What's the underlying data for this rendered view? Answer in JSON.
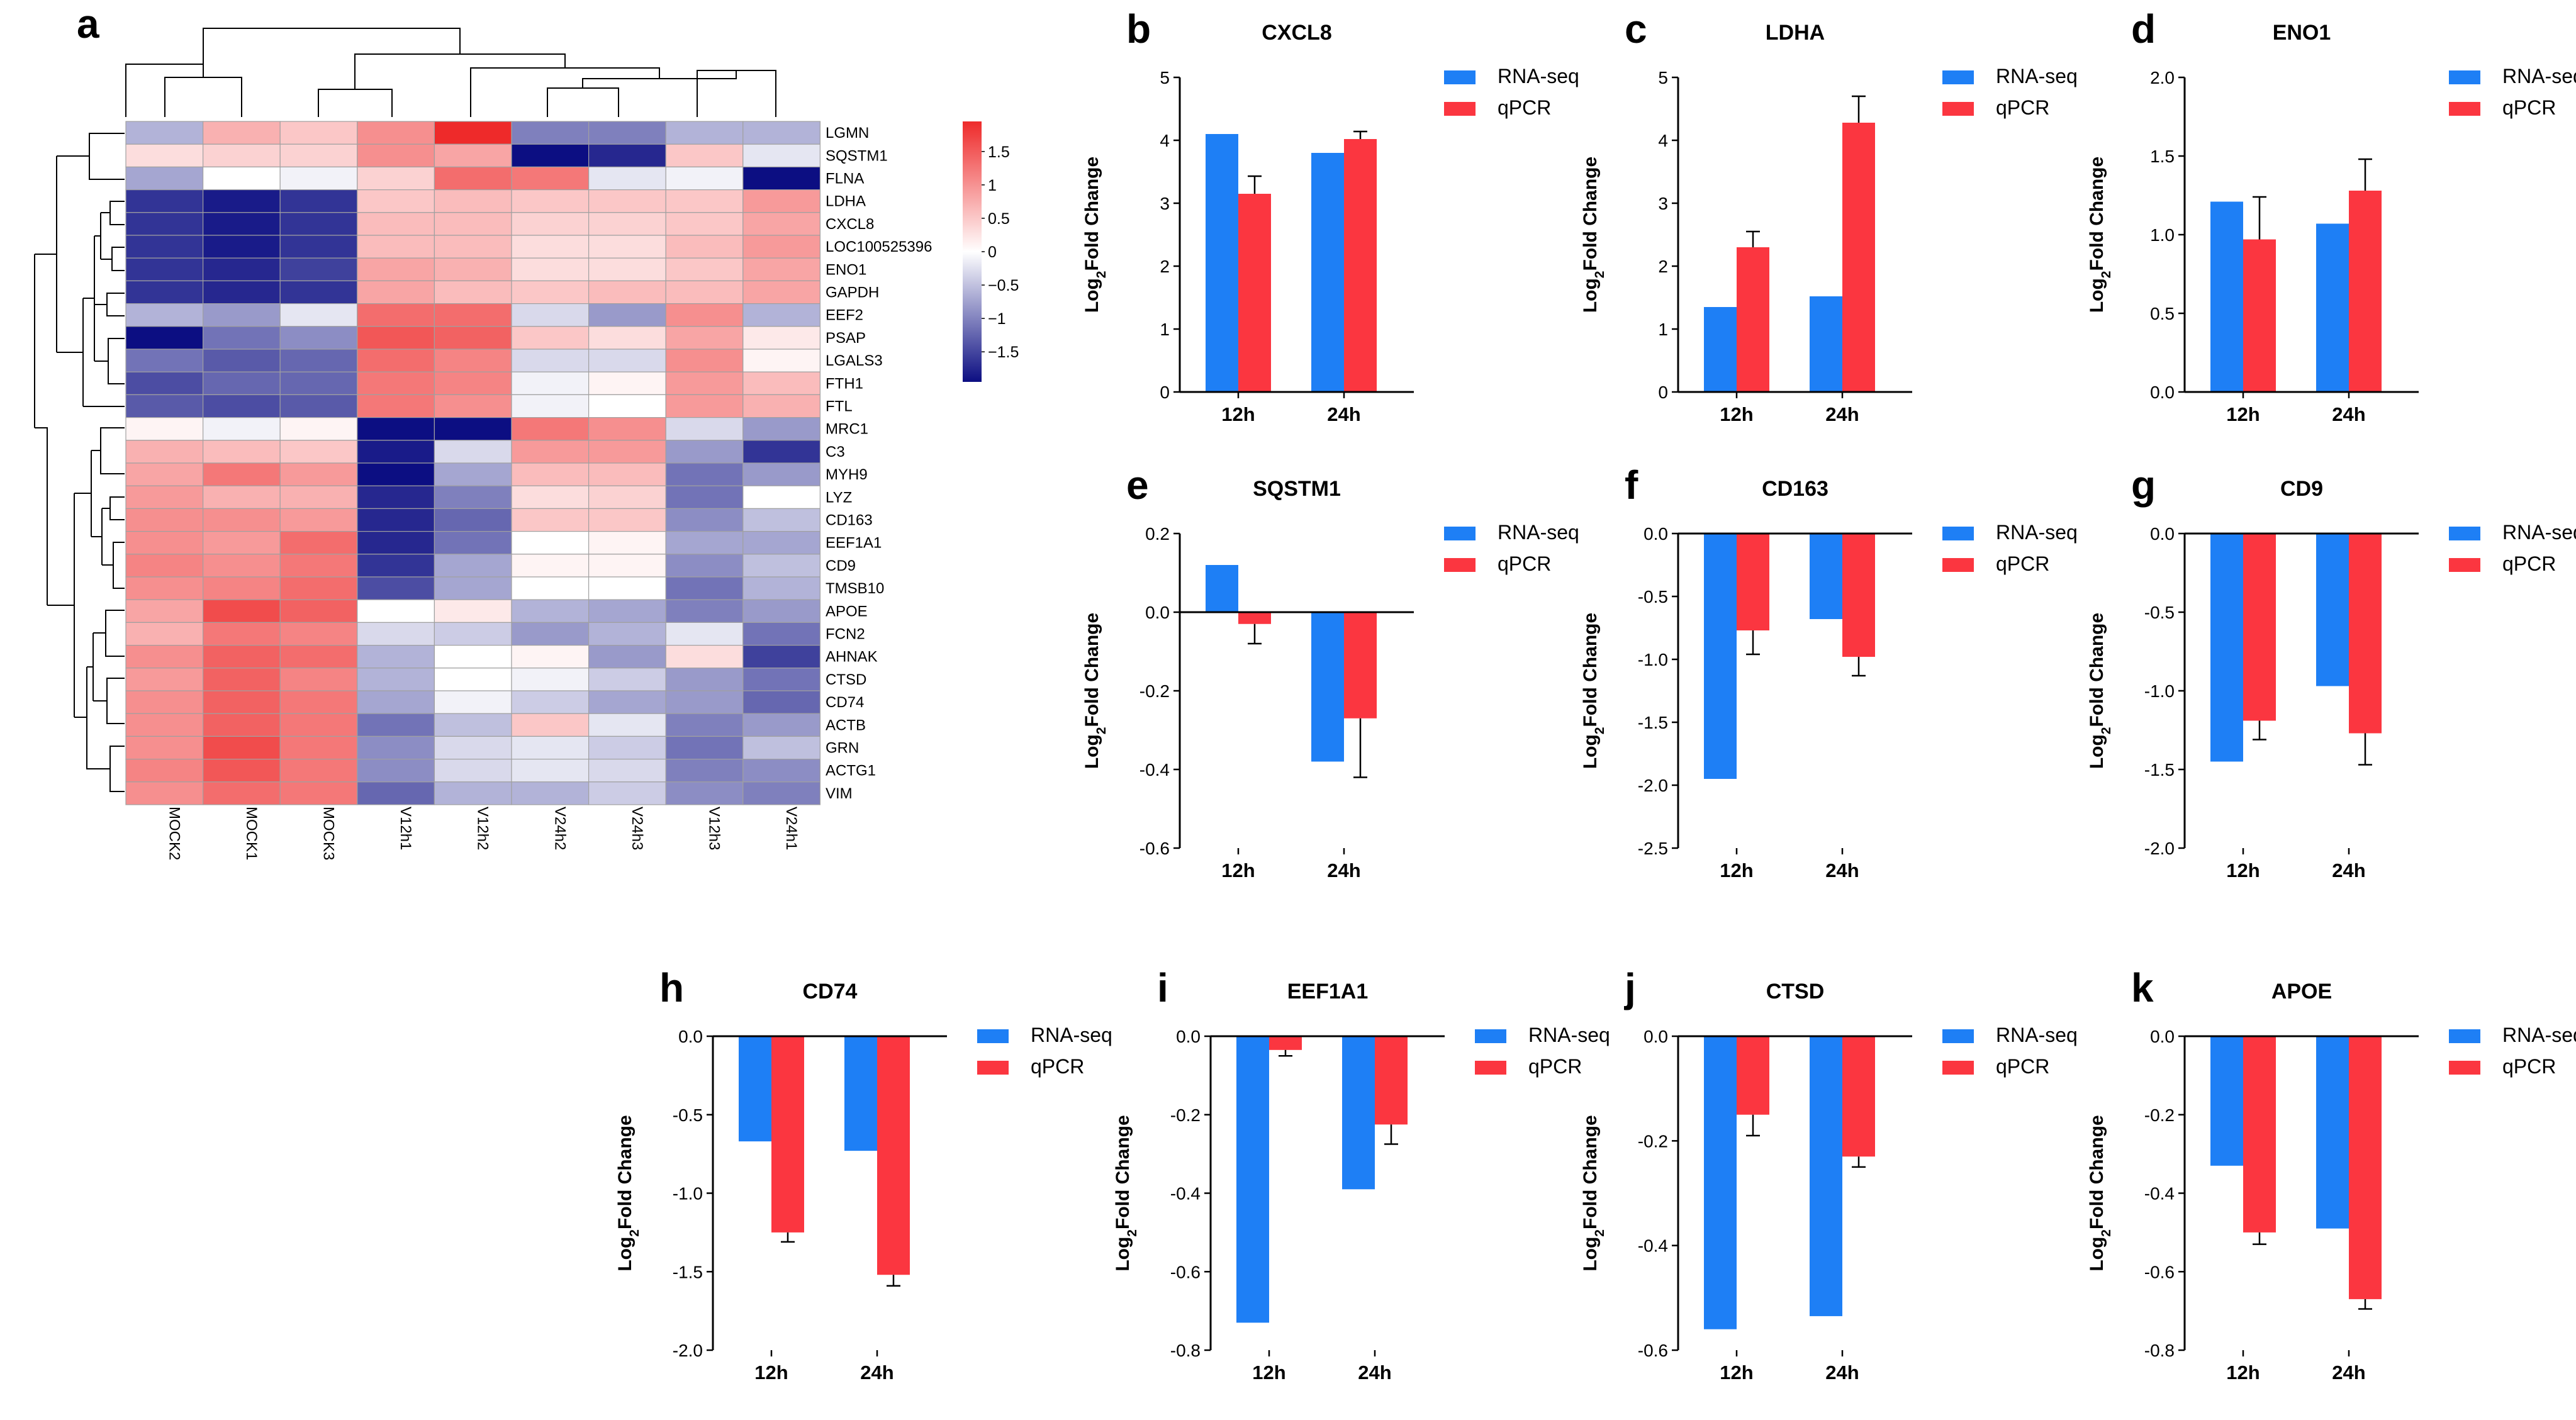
{
  "colors": {
    "rna": "#1e7ff5",
    "qpcr": "#fb3640",
    "heat_low": "#0c0e82",
    "heat_mid": "#ffffff",
    "heat_high": "#ee2a2a",
    "grid": "#a0a0a0"
  },
  "heatmap": {
    "letter": "a",
    "genes": [
      "LGMN",
      "SQSTM1",
      "FLNA",
      "LDHA",
      "CXCL8",
      "LOC100525396",
      "ENO1",
      "GAPDH",
      "EEF2",
      "PSAP",
      "LGALS3",
      "FTH1",
      "FTL",
      "MRC1",
      "C3",
      "MYH9",
      "LYZ",
      "CD163",
      "EEF1A1",
      "CD9",
      "TMSB10",
      "APOE",
      "FCN2",
      "AHNAK",
      "CTSD",
      "CD74",
      "ACTB",
      "GRN",
      "ACTG1",
      "VIM"
    ],
    "samples": [
      "MOCK2",
      "MOCK1",
      "MOCK3",
      "V12h1",
      "V12h2",
      "V24h2",
      "V24h3",
      "V12h3",
      "V24h1"
    ],
    "values": [
      [
        -0.6,
        0.7,
        0.5,
        1.0,
        1.9,
        -1.0,
        -1.0,
        -0.6,
        -0.6
      ],
      [
        0.3,
        0.4,
        0.4,
        1.0,
        0.8,
        -1.9,
        -1.7,
        0.5,
        -0.2
      ],
      [
        -0.7,
        0.0,
        -0.1,
        0.4,
        1.3,
        1.2,
        -0.2,
        -0.1,
        -1.9
      ],
      [
        -1.6,
        -1.8,
        -1.6,
        0.5,
        0.6,
        0.5,
        0.5,
        0.5,
        0.9
      ],
      [
        -1.6,
        -1.8,
        -1.6,
        0.6,
        0.6,
        0.4,
        0.4,
        0.5,
        0.8
      ],
      [
        -1.6,
        -1.8,
        -1.6,
        0.6,
        0.6,
        0.3,
        0.3,
        0.6,
        0.9
      ],
      [
        -1.6,
        -1.7,
        -1.5,
        0.8,
        0.7,
        0.3,
        0.3,
        0.5,
        0.8
      ],
      [
        -1.6,
        -1.7,
        -1.6,
        0.8,
        0.6,
        0.5,
        0.6,
        0.6,
        0.8
      ],
      [
        -0.6,
        -0.8,
        -0.2,
        1.3,
        1.3,
        -0.3,
        -0.8,
        1.0,
        -0.6
      ],
      [
        -1.9,
        -1.1,
        -0.9,
        1.5,
        1.4,
        0.5,
        0.3,
        0.8,
        0.2
      ],
      [
        -1.1,
        -1.3,
        -1.2,
        1.3,
        1.1,
        -0.3,
        -0.3,
        1.0,
        0.1
      ],
      [
        -1.4,
        -1.2,
        -1.2,
        1.2,
        1.1,
        -0.1,
        0.1,
        0.9,
        0.6
      ],
      [
        -1.3,
        -1.4,
        -1.3,
        1.2,
        1.0,
        -0.1,
        0.0,
        0.9,
        0.7
      ],
      [
        0.1,
        -0.1,
        0.1,
        -1.9,
        -1.9,
        1.2,
        1.0,
        -0.3,
        -0.8
      ],
      [
        0.7,
        0.6,
        0.5,
        -1.8,
        -0.3,
        0.9,
        0.9,
        -0.8,
        -1.6
      ],
      [
        0.8,
        1.2,
        0.9,
        -1.9,
        -0.7,
        0.6,
        0.6,
        -1.1,
        -0.8
      ],
      [
        0.9,
        0.7,
        0.7,
        -1.7,
        -1.0,
        0.3,
        0.4,
        -1.1,
        0.0
      ],
      [
        1.0,
        1.0,
        0.9,
        -1.7,
        -1.2,
        0.5,
        0.5,
        -0.9,
        -0.5
      ],
      [
        1.0,
        0.9,
        1.3,
        -1.7,
        -1.1,
        0.0,
        0.1,
        -0.7,
        -0.7
      ],
      [
        1.1,
        1.0,
        1.2,
        -1.6,
        -0.7,
        0.1,
        0.1,
        -0.9,
        -0.5
      ],
      [
        1.0,
        1.1,
        1.3,
        -1.4,
        -0.7,
        0.0,
        0.0,
        -1.1,
        -0.6
      ],
      [
        0.8,
        1.6,
        1.4,
        0.0,
        0.2,
        -0.6,
        -0.7,
        -1.0,
        -0.8
      ],
      [
        0.7,
        1.2,
        1.1,
        -0.3,
        -0.4,
        -0.8,
        -0.6,
        -0.2,
        -1.1
      ],
      [
        1.0,
        1.4,
        1.3,
        -0.6,
        0.0,
        0.1,
        -0.8,
        0.3,
        -1.5
      ],
      [
        0.9,
        1.4,
        1.1,
        -0.6,
        0.0,
        -0.1,
        -0.4,
        -0.8,
        -1.1
      ],
      [
        1.0,
        1.4,
        1.2,
        -0.7,
        -0.1,
        -0.4,
        -0.7,
        -0.8,
        -1.2
      ],
      [
        1.0,
        1.4,
        1.2,
        -1.1,
        -0.5,
        0.5,
        -0.2,
        -1.0,
        -0.8
      ],
      [
        1.0,
        1.6,
        1.2,
        -0.9,
        -0.3,
        -0.2,
        -0.4,
        -1.1,
        -0.5
      ],
      [
        1.1,
        1.5,
        1.2,
        -0.9,
        -0.3,
        -0.2,
        -0.3,
        -1.0,
        -0.9
      ],
      [
        1.0,
        1.3,
        1.2,
        -1.2,
        -0.6,
        -0.6,
        -0.4,
        -0.9,
        -1.0
      ]
    ],
    "colorbar_ticks": [
      "1.5",
      "1",
      "0.5",
      "0",
      "−0.5",
      "−1",
      "−1.5"
    ],
    "colorbar_values": [
      1.5,
      1,
      0.5,
      0,
      -0.5,
      -1,
      -1.5
    ],
    "colorbar_range": [
      -1.95,
      1.95
    ]
  },
  "y_axis_label": {
    "prefix": "Log",
    "sub": "2",
    "suffix": "Fold Change"
  },
  "chart_data": [
    {
      "letter": "b",
      "type": "bar",
      "title": "CXCL8",
      "categories": [
        "12h",
        "24h"
      ],
      "series": [
        {
          "name": "RNA-seq",
          "values": [
            4.1,
            3.8
          ]
        },
        {
          "name": "qPCR",
          "values": [
            3.15,
            4.02
          ]
        }
      ],
      "errors": [
        0.28,
        0.12
      ],
      "ylim": [
        0,
        5
      ],
      "ticks": [
        0,
        1,
        2,
        3,
        4,
        5
      ],
      "tick_labels": [
        "0",
        "1",
        "2",
        "3",
        "4",
        "5"
      ]
    },
    {
      "letter": "c",
      "type": "bar",
      "title": "LDHA",
      "categories": [
        "12h",
        "24h"
      ],
      "series": [
        {
          "name": "RNA-seq",
          "values": [
            1.35,
            1.52
          ]
        },
        {
          "name": "qPCR",
          "values": [
            2.3,
            4.28
          ]
        }
      ],
      "errors": [
        0.25,
        0.42
      ],
      "ylim": [
        0,
        5
      ],
      "ticks": [
        0,
        1,
        2,
        3,
        4,
        5
      ],
      "tick_labels": [
        "0",
        "1",
        "2",
        "3",
        "4",
        "5"
      ]
    },
    {
      "letter": "d",
      "type": "bar",
      "title": "ENO1",
      "categories": [
        "12h",
        "24h"
      ],
      "series": [
        {
          "name": "RNA-seq",
          "values": [
            1.21,
            1.07
          ]
        },
        {
          "name": "qPCR",
          "values": [
            0.97,
            1.28
          ]
        }
      ],
      "errors": [
        0.27,
        0.2
      ],
      "ylim": [
        0,
        2.0
      ],
      "ticks": [
        0,
        0.5,
        1.0,
        1.5,
        2.0
      ],
      "tick_labels": [
        "0.0",
        "0.5",
        "1.0",
        "1.5",
        "2.0"
      ]
    },
    {
      "letter": "e",
      "type": "bar",
      "title": "SQSTM1",
      "categories": [
        "12h",
        "24h"
      ],
      "series": [
        {
          "name": "RNA-seq",
          "values": [
            0.12,
            -0.38
          ]
        },
        {
          "name": "qPCR",
          "values": [
            -0.03,
            -0.27
          ]
        }
      ],
      "errors": [
        0.05,
        0.15
      ],
      "ylim": [
        -0.6,
        0.2
      ],
      "ticks": [
        0.2,
        0,
        -0.2,
        -0.4,
        -0.6
      ],
      "tick_labels": [
        "0.2",
        "0.0",
        "-0.2",
        "-0.4",
        "-0.6"
      ]
    },
    {
      "letter": "f",
      "type": "bar",
      "title": "CD163",
      "categories": [
        "12h",
        "24h"
      ],
      "series": [
        {
          "name": "RNA-seq",
          "values": [
            -1.95,
            -0.68
          ]
        },
        {
          "name": "qPCR",
          "values": [
            -0.77,
            -0.98
          ]
        }
      ],
      "errors": [
        0.19,
        0.15
      ],
      "ylim": [
        -2.5,
        0
      ],
      "ticks": [
        0,
        -0.5,
        -1,
        -1.5,
        -2,
        -2.5
      ],
      "tick_labels": [
        "0.0",
        "-0.5",
        "-1.0",
        "-1.5",
        "-2.0",
        "-2.5"
      ]
    },
    {
      "letter": "g",
      "type": "bar",
      "title": "CD9",
      "categories": [
        "12h",
        "24h"
      ],
      "series": [
        {
          "name": "RNA-seq",
          "values": [
            -1.45,
            -0.97
          ]
        },
        {
          "name": "qPCR",
          "values": [
            -1.19,
            -1.27
          ]
        }
      ],
      "errors": [
        0.12,
        0.2
      ],
      "ylim": [
        -2.0,
        0
      ],
      "ticks": [
        0,
        -0.5,
        -1,
        -1.5,
        -2
      ],
      "tick_labels": [
        "0.0",
        "-0.5",
        "-1.0",
        "-1.5",
        "-2.0"
      ]
    },
    {
      "letter": "h",
      "type": "bar",
      "title": "CD74",
      "categories": [
        "12h",
        "24h"
      ],
      "series": [
        {
          "name": "RNA-seq",
          "values": [
            -0.67,
            -0.73
          ]
        },
        {
          "name": "qPCR",
          "values": [
            -1.25,
            -1.52
          ]
        }
      ],
      "errors": [
        0.06,
        0.07
      ],
      "ylim": [
        -2.0,
        0
      ],
      "ticks": [
        0,
        -0.5,
        -1,
        -1.5,
        -2
      ],
      "tick_labels": [
        "0.0",
        "-0.5",
        "-1.0",
        "-1.5",
        "-2.0"
      ]
    },
    {
      "letter": "i",
      "type": "bar",
      "title": "EEF1A1",
      "categories": [
        "12h",
        "24h"
      ],
      "series": [
        {
          "name": "RNA-seq",
          "values": [
            -0.73,
            -0.39
          ]
        },
        {
          "name": "qPCR",
          "values": [
            -0.035,
            -0.225
          ]
        }
      ],
      "errors": [
        0.015,
        0.05
      ],
      "ylim": [
        -0.8,
        0
      ],
      "ticks": [
        0,
        -0.2,
        -0.4,
        -0.6,
        -0.8
      ],
      "tick_labels": [
        "0.0",
        "-0.2",
        "-0.4",
        "-0.6",
        "-0.8"
      ]
    },
    {
      "letter": "j",
      "type": "bar",
      "title": "CTSD",
      "categories": [
        "12h",
        "24h"
      ],
      "series": [
        {
          "name": "RNA-seq",
          "values": [
            -0.56,
            -0.535
          ]
        },
        {
          "name": "qPCR",
          "values": [
            -0.15,
            -0.23
          ]
        }
      ],
      "errors": [
        0.04,
        0.02
      ],
      "ylim": [
        -0.6,
        0
      ],
      "ticks": [
        0,
        -0.2,
        -0.4,
        -0.6
      ],
      "tick_labels": [
        "0.0",
        "-0.2",
        "-0.4",
        "-0.6"
      ]
    },
    {
      "letter": "k",
      "type": "bar",
      "title": "APOE",
      "categories": [
        "12h",
        "24h"
      ],
      "series": [
        {
          "name": "RNA-seq",
          "values": [
            -0.33,
            -0.49
          ]
        },
        {
          "name": "qPCR",
          "values": [
            -0.5,
            -0.67
          ]
        }
      ],
      "errors": [
        0.03,
        0.025
      ],
      "ylim": [
        -0.8,
        0
      ],
      "ticks": [
        0,
        -0.2,
        -0.4,
        -0.6,
        -0.8
      ],
      "tick_labels": [
        "0.0",
        "-0.2",
        "-0.4",
        "-0.6",
        "-0.8"
      ]
    }
  ]
}
